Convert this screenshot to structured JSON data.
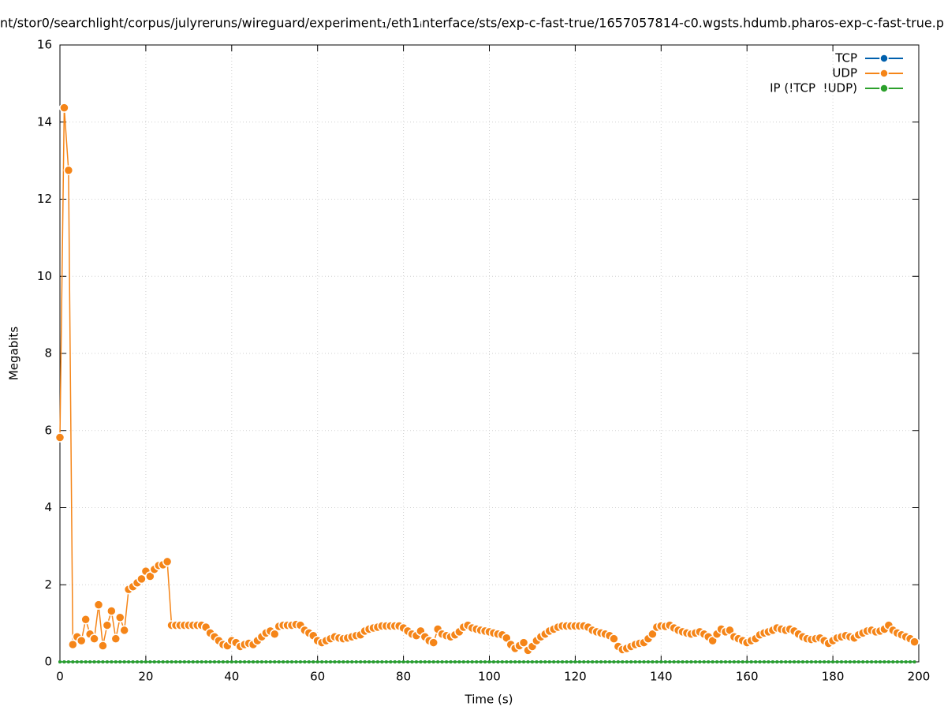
{
  "chart_data": {
    "type": "line",
    "title": "nt/stor0/searchlight/corpus/julyreruns/wireguard/experiment₁/eth1ᵢnterface/sts/exp-c-fast-true/1657057814-c0.wgsts.hdumb.pharos-exp-c-fast-true.p",
    "x_label": "Time (s)",
    "y_label": "Megabits",
    "xlim": [
      0,
      200
    ],
    "xticks": [
      0,
      20,
      40,
      60,
      80,
      100,
      120,
      140,
      160,
      180,
      200
    ],
    "ylim": [
      0,
      16
    ],
    "yticks": [
      0,
      2,
      4,
      6,
      8,
      10,
      12,
      14,
      16
    ],
    "grid": true,
    "legend": "top-right",
    "x": [
      0,
      1,
      2,
      3,
      4,
      5,
      6,
      7,
      8,
      9,
      10,
      11,
      12,
      13,
      14,
      15,
      16,
      17,
      18,
      19,
      20,
      21,
      22,
      23,
      24,
      25,
      26,
      27,
      28,
      29,
      30,
      31,
      32,
      33,
      34,
      35,
      36,
      37,
      38,
      39,
      40,
      41,
      42,
      43,
      44,
      45,
      46,
      47,
      48,
      49,
      50,
      51,
      52,
      53,
      54,
      55,
      56,
      57,
      58,
      59,
      60,
      61,
      62,
      63,
      64,
      65,
      66,
      67,
      68,
      69,
      70,
      71,
      72,
      73,
      74,
      75,
      76,
      77,
      78,
      79,
      80,
      81,
      82,
      83,
      84,
      85,
      86,
      87,
      88,
      89,
      90,
      91,
      92,
      93,
      94,
      95,
      96,
      97,
      98,
      99,
      100,
      101,
      102,
      103,
      104,
      105,
      106,
      107,
      108,
      109,
      110,
      111,
      112,
      113,
      114,
      115,
      116,
      117,
      118,
      119,
      120,
      121,
      122,
      123,
      124,
      125,
      126,
      127,
      128,
      129,
      130,
      131,
      132,
      133,
      134,
      135,
      136,
      137,
      138,
      139,
      140,
      141,
      142,
      143,
      144,
      145,
      146,
      147,
      148,
      149,
      150,
      151,
      152,
      153,
      154,
      155,
      156,
      157,
      158,
      159,
      160,
      161,
      162,
      163,
      164,
      165,
      166,
      167,
      168,
      169,
      170,
      171,
      172,
      173,
      174,
      175,
      176,
      177,
      178,
      179,
      180,
      181,
      182,
      183,
      184,
      185,
      186,
      187,
      188,
      189,
      190,
      191,
      192,
      193,
      194,
      195,
      196,
      197,
      198,
      199
    ],
    "series": [
      {
        "name": "TCP",
        "color": "#0060ad",
        "values": [
          0,
          0,
          0,
          0,
          0,
          0,
          0,
          0,
          0,
          0,
          0,
          0,
          0,
          0,
          0,
          0,
          0,
          0,
          0,
          0,
          0,
          0,
          0,
          0,
          0,
          0,
          0,
          0,
          0,
          0,
          0,
          0,
          0,
          0,
          0,
          0,
          0,
          0,
          0,
          0,
          0,
          0,
          0,
          0,
          0,
          0,
          0,
          0,
          0,
          0,
          0,
          0,
          0,
          0,
          0,
          0,
          0,
          0,
          0,
          0,
          0,
          0,
          0,
          0,
          0,
          0,
          0,
          0,
          0,
          0,
          0,
          0,
          0,
          0,
          0,
          0,
          0,
          0,
          0,
          0,
          0,
          0,
          0,
          0,
          0,
          0,
          0,
          0,
          0,
          0,
          0,
          0,
          0,
          0,
          0,
          0,
          0,
          0,
          0,
          0,
          0,
          0,
          0,
          0,
          0,
          0,
          0,
          0,
          0,
          0,
          0,
          0,
          0,
          0,
          0,
          0,
          0,
          0,
          0,
          0,
          0,
          0,
          0,
          0,
          0,
          0,
          0,
          0,
          0,
          0,
          0,
          0,
          0,
          0,
          0,
          0,
          0,
          0,
          0,
          0,
          0,
          0,
          0,
          0,
          0,
          0,
          0,
          0,
          0,
          0,
          0,
          0,
          0,
          0,
          0,
          0,
          0,
          0,
          0,
          0,
          0,
          0,
          0,
          0,
          0,
          0,
          0,
          0,
          0,
          0,
          0,
          0,
          0,
          0,
          0,
          0,
          0,
          0,
          0,
          0,
          0,
          0,
          0,
          0,
          0,
          0,
          0,
          0,
          0,
          0,
          0,
          0,
          0,
          0,
          0,
          0,
          0,
          0,
          0,
          0
        ]
      },
      {
        "name": "UDP",
        "color": "#f58518",
        "values": [
          5.82,
          14.37,
          12.75,
          0.45,
          0.65,
          0.55,
          1.1,
          0.72,
          0.6,
          1.48,
          0.42,
          0.95,
          1.32,
          0.6,
          1.15,
          0.82,
          1.88,
          1.95,
          2.05,
          2.15,
          2.35,
          2.22,
          2.4,
          2.5,
          2.52,
          2.6,
          0.95,
          0.95,
          0.95,
          0.95,
          0.95,
          0.95,
          0.95,
          0.95,
          0.9,
          0.75,
          0.65,
          0.55,
          0.45,
          0.42,
          0.55,
          0.5,
          0.4,
          0.45,
          0.48,
          0.45,
          0.55,
          0.65,
          0.75,
          0.8,
          0.72,
          0.92,
          0.95,
          0.95,
          0.95,
          0.97,
          0.95,
          0.82,
          0.75,
          0.68,
          0.55,
          0.5,
          0.55,
          0.6,
          0.65,
          0.62,
          0.6,
          0.62,
          0.65,
          0.68,
          0.7,
          0.8,
          0.85,
          0.88,
          0.9,
          0.93,
          0.93,
          0.93,
          0.93,
          0.93,
          0.88,
          0.8,
          0.72,
          0.68,
          0.8,
          0.65,
          0.55,
          0.5,
          0.85,
          0.72,
          0.68,
          0.65,
          0.7,
          0.78,
          0.9,
          0.95,
          0.88,
          0.85,
          0.82,
          0.8,
          0.78,
          0.75,
          0.72,
          0.7,
          0.62,
          0.45,
          0.35,
          0.42,
          0.5,
          0.3,
          0.4,
          0.55,
          0.65,
          0.72,
          0.8,
          0.85,
          0.9,
          0.93,
          0.93,
          0.93,
          0.93,
          0.93,
          0.93,
          0.9,
          0.82,
          0.78,
          0.75,
          0.72,
          0.68,
          0.6,
          0.4,
          0.32,
          0.35,
          0.4,
          0.45,
          0.48,
          0.5,
          0.6,
          0.72,
          0.9,
          0.93,
          0.92,
          0.95,
          0.88,
          0.82,
          0.78,
          0.75,
          0.72,
          0.75,
          0.78,
          0.72,
          0.65,
          0.55,
          0.72,
          0.85,
          0.78,
          0.82,
          0.65,
          0.6,
          0.55,
          0.5,
          0.55,
          0.6,
          0.7,
          0.75,
          0.78,
          0.82,
          0.88,
          0.85,
          0.82,
          0.85,
          0.8,
          0.72,
          0.65,
          0.6,
          0.58,
          0.6,
          0.62,
          0.55,
          0.48,
          0.55,
          0.62,
          0.65,
          0.68,
          0.65,
          0.62,
          0.7,
          0.75,
          0.8,
          0.82,
          0.78,
          0.8,
          0.85,
          0.95,
          0.82,
          0.75,
          0.7,
          0.65,
          0.6,
          0.52
        ]
      },
      {
        "name": "IP (!TCP  !UDP)",
        "color": "#2ca02c",
        "values": [
          0,
          0,
          0,
          0,
          0,
          0,
          0,
          0,
          0,
          0,
          0,
          0,
          0,
          0,
          0,
          0,
          0,
          0,
          0,
          0,
          0,
          0,
          0,
          0,
          0,
          0,
          0,
          0,
          0,
          0,
          0,
          0,
          0,
          0,
          0,
          0,
          0,
          0,
          0,
          0,
          0,
          0,
          0,
          0,
          0,
          0,
          0,
          0,
          0,
          0,
          0,
          0,
          0,
          0,
          0,
          0,
          0,
          0,
          0,
          0,
          0,
          0,
          0,
          0,
          0,
          0,
          0,
          0,
          0,
          0,
          0,
          0,
          0,
          0,
          0,
          0,
          0,
          0,
          0,
          0,
          0,
          0,
          0,
          0,
          0,
          0,
          0,
          0,
          0,
          0,
          0,
          0,
          0,
          0,
          0,
          0,
          0,
          0,
          0,
          0,
          0,
          0,
          0,
          0,
          0,
          0,
          0,
          0,
          0,
          0,
          0,
          0,
          0,
          0,
          0,
          0,
          0,
          0,
          0,
          0,
          0,
          0,
          0,
          0,
          0,
          0,
          0,
          0,
          0,
          0,
          0,
          0,
          0,
          0,
          0,
          0,
          0,
          0,
          0,
          0,
          0,
          0,
          0,
          0,
          0,
          0,
          0,
          0,
          0,
          0,
          0,
          0,
          0,
          0,
          0,
          0,
          0,
          0,
          0,
          0,
          0,
          0,
          0,
          0,
          0,
          0,
          0,
          0,
          0,
          0,
          0,
          0,
          0,
          0,
          0,
          0,
          0,
          0,
          0,
          0,
          0,
          0,
          0,
          0,
          0,
          0,
          0,
          0,
          0,
          0,
          0,
          0,
          0,
          0,
          0,
          0,
          0,
          0,
          0,
          0
        ]
      }
    ]
  }
}
